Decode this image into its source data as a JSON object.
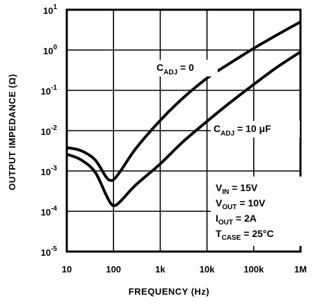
{
  "chart_data": {
    "type": "line",
    "title": "",
    "xlabel": "FREQUENCY (Hz)",
    "ylabel": "OUTPUT IMPEDANCE (Ω)",
    "xscale": "log",
    "yscale": "log",
    "xlim": [
      10,
      1000000
    ],
    "ylim": [
      1e-05,
      10
    ],
    "grid": true,
    "x_ticks": [
      {
        "value": 10,
        "label": "10"
      },
      {
        "value": 100,
        "label": "100"
      },
      {
        "value": 1000,
        "label": "1k"
      },
      {
        "value": 10000,
        "label": "10k"
      },
      {
        "value": 100000,
        "label": "100k"
      },
      {
        "value": 1000000,
        "label": "1M"
      }
    ],
    "y_ticks": [
      {
        "value": 10,
        "base": "10",
        "exp": "1"
      },
      {
        "value": 1,
        "base": "10",
        "exp": "0"
      },
      {
        "value": 0.1,
        "base": "10",
        "exp": "-1"
      },
      {
        "value": 0.01,
        "base": "10",
        "exp": "-2"
      },
      {
        "value": 0.001,
        "base": "10",
        "exp": "-3"
      },
      {
        "value": 0.0001,
        "base": "10",
        "exp": "-4"
      },
      {
        "value": 1e-05,
        "base": "10",
        "exp": "-5"
      }
    ],
    "series": [
      {
        "label_main": "C",
        "label_sub": "ADJ",
        "label_rest": " = 0",
        "x": [
          10,
          20,
          40,
          70,
          90,
          110,
          150,
          300,
          1000,
          3000,
          10000,
          30000,
          100000,
          300000,
          1000000
        ],
        "y": [
          0.0038,
          0.0032,
          0.0019,
          0.0007,
          0.00058,
          0.00068,
          0.0011,
          0.0036,
          0.018,
          0.063,
          0.2,
          0.46,
          1.1,
          2.3,
          5.0
        ]
      },
      {
        "label_main": "C",
        "label_sub": "ADJ",
        "label_rest": " = 10 μF",
        "x": [
          10,
          20,
          40,
          70,
          90,
          110,
          150,
          300,
          1000,
          3000,
          10000,
          30000,
          100000,
          300000,
          1000000
        ],
        "y": [
          0.0026,
          0.0019,
          0.00095,
          0.00025,
          0.00015,
          0.00014,
          0.00019,
          0.00045,
          0.0015,
          0.0052,
          0.017,
          0.048,
          0.14,
          0.36,
          0.9
        ]
      }
    ],
    "conditions": [
      {
        "main": "V",
        "sub": "IN",
        "rest": " = 15V"
      },
      {
        "main": "V",
        "sub": "OUT",
        "rest": " = 10V"
      },
      {
        "main": "I",
        "sub": "OUT",
        "rest": " = 2A"
      },
      {
        "main": "T",
        "sub": "CASE",
        "rest": " = 25°C"
      }
    ]
  }
}
